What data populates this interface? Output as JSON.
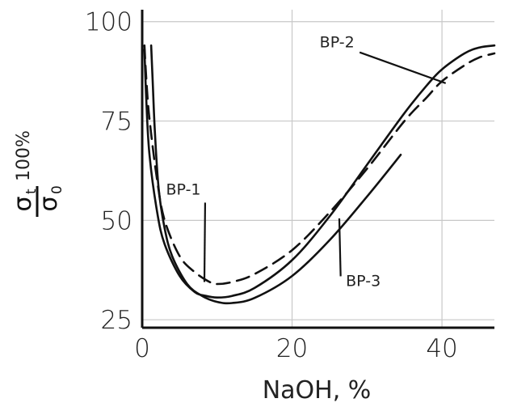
{
  "chart_data": {
    "type": "line",
    "xlabel": "NaOH, %",
    "ylabel": {
      "numerator": "σ",
      "numerator_sub": "t",
      "denominator": "σ",
      "denominator_sub": "0",
      "suffix": "100%"
    },
    "xlim": [
      0,
      47
    ],
    "ylim": [
      23,
      103
    ],
    "x_ticks": [
      0,
      20,
      40
    ],
    "x_tick_labels": [
      "0",
      "20",
      "40"
    ],
    "y_ticks": [
      25,
      50,
      75,
      100
    ],
    "y_tick_labels": [
      "25",
      "50",
      "75",
      "100"
    ],
    "grid": true,
    "axis_color": "#111111",
    "grid_color": "#c8c8c8",
    "series": [
      {
        "name": "BP-1",
        "style": "solid",
        "x": [
          0.3,
          0.6,
          1.0,
          2.0,
          3.0,
          5.0,
          7.0,
          8.5,
          10,
          12,
          15,
          20,
          25,
          30,
          35,
          38,
          40,
          43,
          45,
          47
        ],
        "y": [
          93,
          78,
          66,
          52,
          44,
          36,
          32,
          31,
          30.6,
          31,
          33,
          40,
          51,
          64,
          77,
          84,
          88,
          92,
          93.5,
          94
        ]
      },
      {
        "name": "BP-2",
        "style": "dashed",
        "x": [
          0.3,
          0.6,
          1.0,
          2.0,
          3.0,
          5.0,
          7.0,
          9.0,
          10,
          12,
          15,
          20,
          25,
          30,
          35,
          38,
          40,
          43,
          45,
          47
        ],
        "y": [
          94,
          84,
          75,
          60,
          50,
          41,
          37,
          34.5,
          34,
          34.5,
          36.5,
          42.5,
          52,
          63,
          75,
          81,
          85,
          89,
          91,
          92
        ]
      },
      {
        "name": "BP-3",
        "style": "solid",
        "x": [
          1.2,
          1.4,
          1.7,
          2.2,
          3.0,
          4.0,
          6.0,
          8.0,
          10.0,
          12.0,
          15,
          20,
          25,
          30,
          34.5
        ],
        "y": [
          94,
          85,
          72,
          58,
          48,
          41,
          34,
          31,
          29.5,
          29.2,
          30.5,
          36,
          45,
          56,
          66.5
        ]
      }
    ],
    "annotations": [
      {
        "text": "BP-2",
        "x": 26,
        "y": 93.5,
        "line_to": [
          40.5,
          84.5
        ]
      },
      {
        "text": "BP-1",
        "x": 5.5,
        "y": 56.5,
        "line_to": [
          8.3,
          34.5
        ]
      },
      {
        "text": "BP-3",
        "x": 29.5,
        "y": 33.5,
        "line_to": [
          26.3,
          50.5
        ]
      }
    ]
  }
}
